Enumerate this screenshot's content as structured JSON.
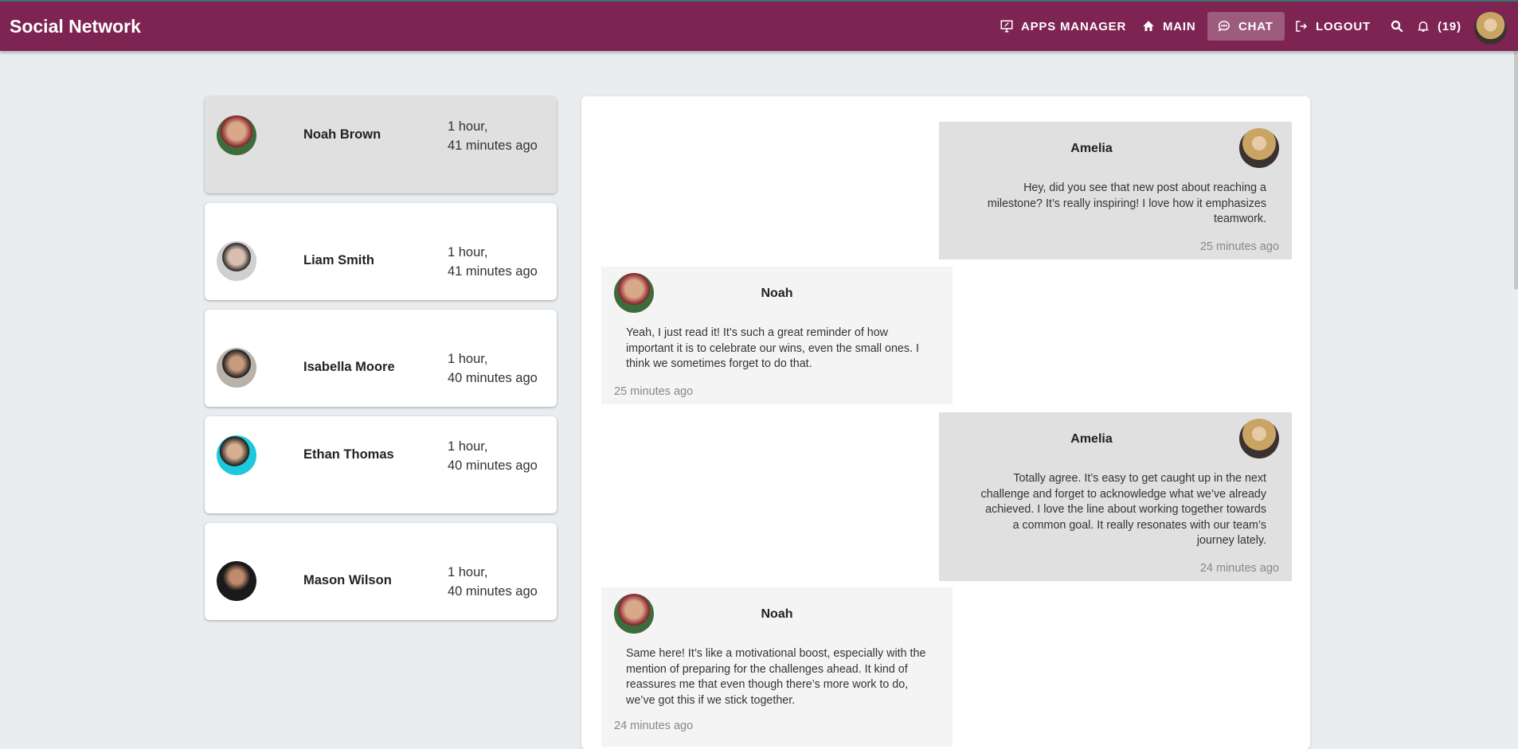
{
  "header": {
    "title": "Social Network",
    "nav": [
      {
        "label": "APPS MANAGER",
        "icon": "monitor-icon"
      },
      {
        "label": "MAIN",
        "icon": "home-icon"
      },
      {
        "label": "CHAT",
        "icon": "chat-bubble-icon",
        "active": true
      },
      {
        "label": "LOGOUT",
        "icon": "logout-icon"
      }
    ],
    "notifications": "(19)",
    "accent": "#7d2452"
  },
  "contacts": [
    {
      "name": "Noah Brown",
      "time1": "1 hour,",
      "time2": "41 minutes ago",
      "selected": true
    },
    {
      "name": "Liam Smith",
      "time1": "1 hour,",
      "time2": "41 minutes ago"
    },
    {
      "name": "Isabella Moore",
      "time1": "1 hour,",
      "time2": "40 minutes ago"
    },
    {
      "name": "Ethan Thomas",
      "time1": "1 hour,",
      "time2": "40 minutes ago"
    },
    {
      "name": "Mason Wilson",
      "time1": "1 hour,",
      "time2": "40 minutes ago"
    }
  ],
  "messages": [
    {
      "sender": "Amelia",
      "text": "Hey, did you see that new post about reaching a milestone? It’s really inspiring! I love how it emphasizes teamwork.",
      "time": "25 minutes ago"
    },
    {
      "sender": "Noah",
      "text": "Yeah, I just read it! It’s such a great reminder of how important it is to celebrate our wins, even the small ones. I think we sometimes forget to do that.",
      "time": "25 minutes ago"
    },
    {
      "sender": "Amelia",
      "text": "Totally agree. It’s easy to get caught up in the next challenge and forget to acknowledge what we’ve already achieved. I love the line about working together towards a common goal. It really resonates with our team’s journey lately.",
      "time": "24 minutes ago"
    },
    {
      "sender": "Noah",
      "text": "Same here! It’s like a motivational boost, especially with the mention of preparing for the challenges ahead. It kind of reassures me that even though there’s more work to do, we’ve got this if we stick together.",
      "time": "24 minutes ago"
    }
  ]
}
